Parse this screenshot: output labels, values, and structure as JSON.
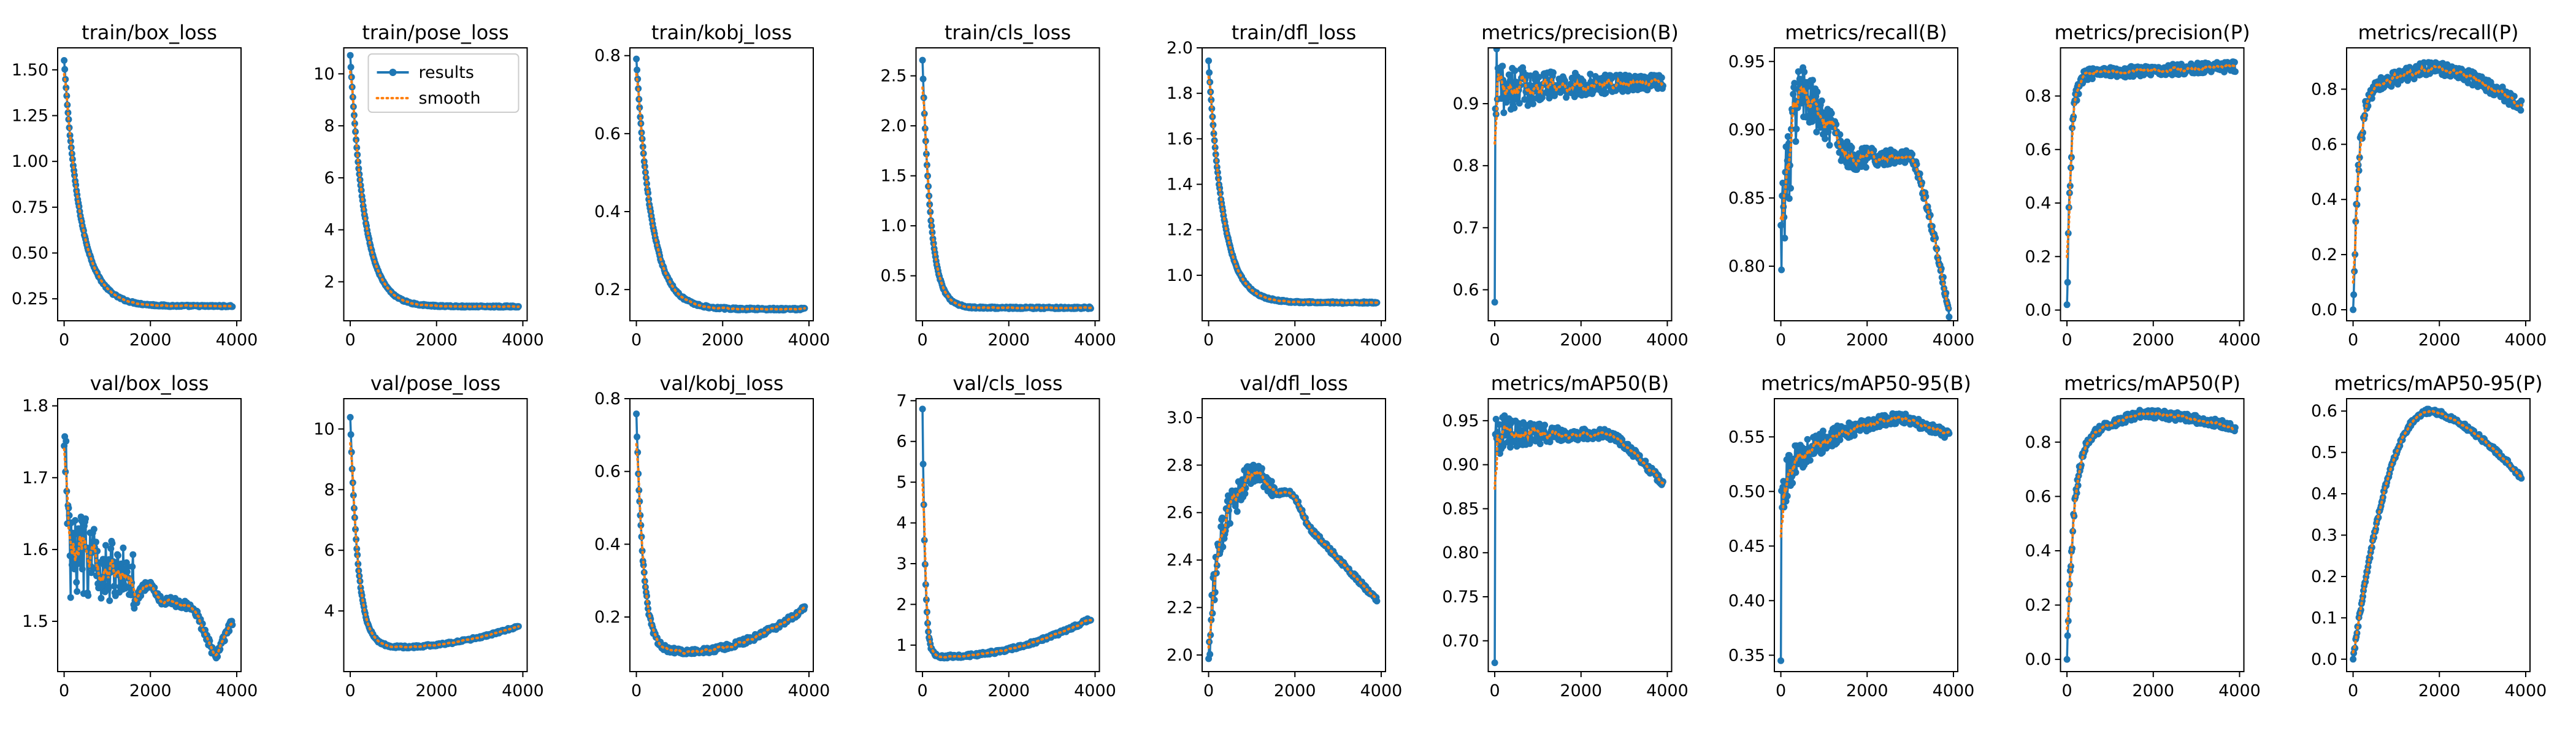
{
  "colors": {
    "results": "#1f77b4",
    "smooth": "#ff7f0e"
  },
  "legend": {
    "results_label": "results",
    "smooth_label": "smooth",
    "location": "upper-right",
    "subplot": "train/pose_loss"
  },
  "chart_data": [
    {
      "type": "line",
      "title": "train/box_loss",
      "xlim": [
        -150,
        4100
      ],
      "ylim": [
        0.13,
        1.62
      ],
      "xticks": [
        0,
        2000,
        4000
      ],
      "yticks": [
        0.25,
        0.5,
        0.75,
        1.0,
        1.25,
        1.5
      ],
      "ytick_labels": [
        "0.25",
        "0.50",
        "0.75",
        "1.00",
        "1.25",
        "1.50"
      ],
      "shape": "decay",
      "start": 1.55,
      "end": 0.21,
      "tau": 380,
      "noise": 0.005,
      "series": [
        {
          "name": "results"
        },
        {
          "name": "smooth"
        }
      ]
    },
    {
      "type": "line",
      "title": "train/pose_loss",
      "xlim": [
        -150,
        4100
      ],
      "ylim": [
        0.5,
        11.0
      ],
      "xticks": [
        0,
        2000,
        4000
      ],
      "yticks": [
        2,
        4,
        6,
        8,
        10
      ],
      "ytick_labels": [
        "2",
        "4",
        "6",
        "8",
        "10"
      ],
      "shape": "decay",
      "start": 10.7,
      "end": 1.05,
      "tau": 330,
      "noise": 0.03,
      "series": [
        {
          "name": "results"
        },
        {
          "name": "smooth"
        }
      ]
    },
    {
      "type": "line",
      "title": "train/kobj_loss",
      "xlim": [
        -150,
        4100
      ],
      "ylim": [
        0.12,
        0.82
      ],
      "xticks": [
        0,
        2000,
        4000
      ],
      "yticks": [
        0.2,
        0.4,
        0.6,
        0.8
      ],
      "ytick_labels": [
        "0.2",
        "0.4",
        "0.6",
        "0.8"
      ],
      "shape": "decay",
      "start": 0.79,
      "end": 0.15,
      "tau": 350,
      "noise": 0.003,
      "series": [
        {
          "name": "results"
        },
        {
          "name": "smooth"
        }
      ]
    },
    {
      "type": "line",
      "title": "train/cls_loss",
      "xlim": [
        -150,
        4100
      ],
      "ylim": [
        0.05,
        2.78
      ],
      "xticks": [
        0,
        2000,
        4000
      ],
      "yticks": [
        0.5,
        1.0,
        1.5,
        2.0,
        2.5
      ],
      "ytick_labels": [
        "0.5",
        "1.0",
        "1.5",
        "2.0",
        "2.5"
      ],
      "shape": "decay",
      "start": 2.65,
      "end": 0.18,
      "tau": 190,
      "noise": 0.01,
      "series": [
        {
          "name": "results"
        },
        {
          "name": "smooth"
        }
      ]
    },
    {
      "type": "line",
      "title": "train/dfl_loss",
      "xlim": [
        -150,
        4100
      ],
      "ylim": [
        0.8,
        2.0
      ],
      "xticks": [
        0,
        2000,
        4000
      ],
      "yticks": [
        1.0,
        1.2,
        1.4,
        1.6,
        1.8,
        2.0
      ],
      "ytick_labels": [
        "1.0",
        "1.2",
        "1.4",
        "1.6",
        "1.8",
        "2.0"
      ],
      "shape": "decay",
      "start": 1.94,
      "end": 0.88,
      "tau": 340,
      "noise": 0.004,
      "series": [
        {
          "name": "results"
        },
        {
          "name": "smooth"
        }
      ]
    },
    {
      "type": "line",
      "title": "metrics/precision(B)",
      "xlim": [
        -150,
        4100
      ],
      "ylim": [
        0.55,
        0.99
      ],
      "xticks": [
        0,
        2000,
        4000
      ],
      "yticks": [
        0.6,
        0.7,
        0.8,
        0.9
      ],
      "ytick_labels": [
        "0.6",
        "0.7",
        "0.8",
        "0.9"
      ],
      "shape": "noisy_plateau",
      "first": 0.58,
      "rise_to": 0.91,
      "level": 0.925,
      "end": 0.935,
      "noise_start": 0.045,
      "noise_end": 0.008,
      "noise_tau": 1600,
      "series": [
        {
          "name": "results"
        },
        {
          "name": "smooth"
        }
      ]
    },
    {
      "type": "line",
      "title": "metrics/recall(B)",
      "xlim": [
        -150,
        4100
      ],
      "ylim": [
        0.76,
        0.96
      ],
      "xticks": [
        0,
        2000,
        4000
      ],
      "yticks": [
        0.8,
        0.85,
        0.9,
        0.95
      ],
      "ytick_labels": [
        "0.80",
        "0.85",
        "0.90",
        "0.95"
      ],
      "shape": "recall_drop",
      "first": 0.83,
      "peak": 0.93,
      "level": 0.88,
      "hold_until": 3000,
      "end": 0.765,
      "noise_start": 0.04,
      "noise_end": 0.003,
      "noise_tau": 1000,
      "series": [
        {
          "name": "results"
        },
        {
          "name": "smooth"
        }
      ]
    },
    {
      "type": "line",
      "title": "metrics/precision(P)",
      "xlim": [
        -150,
        4100
      ],
      "ylim": [
        -0.04,
        0.98
      ],
      "xticks": [
        0,
        2000,
        4000
      ],
      "yticks": [
        0.0,
        0.2,
        0.4,
        0.6,
        0.8
      ],
      "ytick_labels": [
        "0.0",
        "0.2",
        "0.4",
        "0.6",
        "0.8"
      ],
      "shape": "rise_flat",
      "first": 0.02,
      "level": 0.88,
      "tau": 90,
      "end_change": 0.03,
      "noise": 0.02,
      "series": [
        {
          "name": "results"
        },
        {
          "name": "smooth"
        }
      ]
    },
    {
      "type": "line",
      "title": "metrics/recall(P)",
      "xlim": [
        -150,
        4100
      ],
      "ylim": [
        -0.04,
        0.95
      ],
      "xticks": [
        0,
        2000,
        4000
      ],
      "yticks": [
        0.0,
        0.2,
        0.4,
        0.6,
        0.8
      ],
      "ytick_labels": [
        "0.0",
        "0.2",
        "0.4",
        "0.6",
        "0.8"
      ],
      "shape": "rise_peak",
      "first": 0.0,
      "peak": 0.88,
      "peak_x": 1800,
      "tau": 130,
      "end": 0.74,
      "noise": 0.025,
      "series": [
        {
          "name": "results"
        },
        {
          "name": "smooth"
        }
      ]
    },
    {
      "type": "line",
      "title": "val/box_loss",
      "xlim": [
        -150,
        4100
      ],
      "ylim": [
        1.43,
        1.81
      ],
      "xticks": [
        0,
        2000,
        4000
      ],
      "yticks": [
        1.5,
        1.6,
        1.7,
        1.8
      ],
      "ytick_labels": [
        "1.5",
        "1.6",
        "1.7",
        "1.8"
      ],
      "shape": "val_box",
      "series": [
        {
          "name": "results"
        },
        {
          "name": "smooth"
        }
      ]
    },
    {
      "type": "line",
      "title": "val/pose_loss",
      "xlim": [
        -150,
        4100
      ],
      "ylim": [
        2.0,
        11.0
      ],
      "xticks": [
        0,
        2000,
        4000
      ],
      "yticks": [
        4,
        6,
        8,
        10
      ],
      "ytick_labels": [
        "4",
        "6",
        "8",
        "10"
      ],
      "shape": "u_curve",
      "start": 10.4,
      "min": 2.8,
      "min_x": 1000,
      "end": 3.5,
      "tau": 180,
      "noise": 0.04,
      "series": [
        {
          "name": "results"
        },
        {
          "name": "smooth"
        }
      ]
    },
    {
      "type": "line",
      "title": "val/kobj_loss",
      "xlim": [
        -150,
        4100
      ],
      "ylim": [
        0.05,
        0.8
      ],
      "xticks": [
        0,
        2000,
        4000
      ],
      "yticks": [
        0.2,
        0.4,
        0.6,
        0.8
      ],
      "ytick_labels": [
        "0.2",
        "0.4",
        "0.6",
        "0.8"
      ],
      "shape": "u_curve",
      "start": 0.76,
      "min": 0.105,
      "min_x": 1200,
      "end": 0.225,
      "tau": 160,
      "noise": 0.008,
      "series": [
        {
          "name": "results"
        },
        {
          "name": "smooth"
        }
      ]
    },
    {
      "type": "line",
      "title": "val/cls_loss",
      "xlim": [
        -150,
        4100
      ],
      "ylim": [
        0.35,
        7.05
      ],
      "xticks": [
        0,
        2000,
        4000
      ],
      "yticks": [
        1,
        2,
        3,
        4,
        5,
        6,
        7
      ],
      "ytick_labels": [
        "1",
        "2",
        "3",
        "4",
        "5",
        "6",
        "7"
      ],
      "shape": "u_curve",
      "start": 6.8,
      "min": 0.72,
      "min_x": 500,
      "end": 1.65,
      "tau": 60,
      "noise": 0.04,
      "series": [
        {
          "name": "results"
        },
        {
          "name": "smooth"
        }
      ]
    },
    {
      "type": "line",
      "title": "val/dfl_loss",
      "xlim": [
        -150,
        4100
      ],
      "ylim": [
        1.93,
        3.08
      ],
      "xticks": [
        0,
        2000,
        4000
      ],
      "yticks": [
        2.0,
        2.2,
        2.4,
        2.6,
        2.8,
        3.0
      ],
      "ytick_labels": [
        "2.0",
        "2.2",
        "2.4",
        "2.6",
        "2.8",
        "3.0"
      ],
      "shape": "val_dfl",
      "series": [
        {
          "name": "results"
        },
        {
          "name": "smooth"
        }
      ]
    },
    {
      "type": "line",
      "title": "metrics/mAP50(B)",
      "xlim": [
        -150,
        4100
      ],
      "ylim": [
        0.665,
        0.975
      ],
      "xticks": [
        0,
        2000,
        4000
      ],
      "yticks": [
        0.7,
        0.75,
        0.8,
        0.85,
        0.9,
        0.95
      ],
      "ytick_labels": [
        "0.70",
        "0.75",
        "0.80",
        "0.85",
        "0.90",
        "0.95"
      ],
      "shape": "noisy_decline",
      "first": 0.675,
      "rise_to": 0.93,
      "level": 0.935,
      "decline_from": 2600,
      "end": 0.878,
      "noise_start": 0.025,
      "noise_end": 0.004,
      "noise_tau": 1000,
      "series": [
        {
          "name": "results"
        },
        {
          "name": "smooth"
        }
      ]
    },
    {
      "type": "line",
      "title": "metrics/mAP50-95(B)",
      "xlim": [
        -150,
        4100
      ],
      "ylim": [
        0.335,
        0.585
      ],
      "xticks": [
        0,
        2000,
        4000
      ],
      "yticks": [
        0.35,
        0.4,
        0.45,
        0.5,
        0.55
      ],
      "ytick_labels": [
        "0.35",
        "0.40",
        "0.45",
        "0.50",
        "0.55"
      ],
      "shape": "log_rise",
      "first": 0.345,
      "rise_to": 0.49,
      "peak": 0.568,
      "peak_x": 2800,
      "end": 0.552,
      "noise_start": 0.022,
      "noise_end": 0.004,
      "noise_tau": 900,
      "series": [
        {
          "name": "results"
        },
        {
          "name": "smooth"
        }
      ]
    },
    {
      "type": "line",
      "title": "metrics/mAP50(P)",
      "xlim": [
        -150,
        4100
      ],
      "ylim": [
        -0.045,
        0.96
      ],
      "xticks": [
        0,
        2000,
        4000
      ],
      "yticks": [
        0.0,
        0.2,
        0.4,
        0.6,
        0.8
      ],
      "ytick_labels": [
        "0.0",
        "0.2",
        "0.4",
        "0.6",
        "0.8"
      ],
      "shape": "rise_peak",
      "first": 0.0,
      "peak": 0.905,
      "peak_x": 1700,
      "tau": 160,
      "end": 0.855,
      "noise": 0.015,
      "series": [
        {
          "name": "results"
        },
        {
          "name": "smooth"
        }
      ]
    },
    {
      "type": "line",
      "title": "metrics/mAP50-95(P)",
      "xlim": [
        -150,
        4100
      ],
      "ylim": [
        -0.03,
        0.63
      ],
      "xticks": [
        0,
        2000,
        4000
      ],
      "yticks": [
        0.0,
        0.1,
        0.2,
        0.3,
        0.4,
        0.5,
        0.6
      ],
      "ytick_labels": [
        "0.0",
        "0.1",
        "0.2",
        "0.3",
        "0.4",
        "0.5",
        "0.6"
      ],
      "shape": "smooth_peak",
      "first": 0.0,
      "peak": 0.6,
      "peak_x": 1800,
      "end": 0.44,
      "series": [
        {
          "name": "results"
        },
        {
          "name": "smooth"
        }
      ]
    }
  ]
}
